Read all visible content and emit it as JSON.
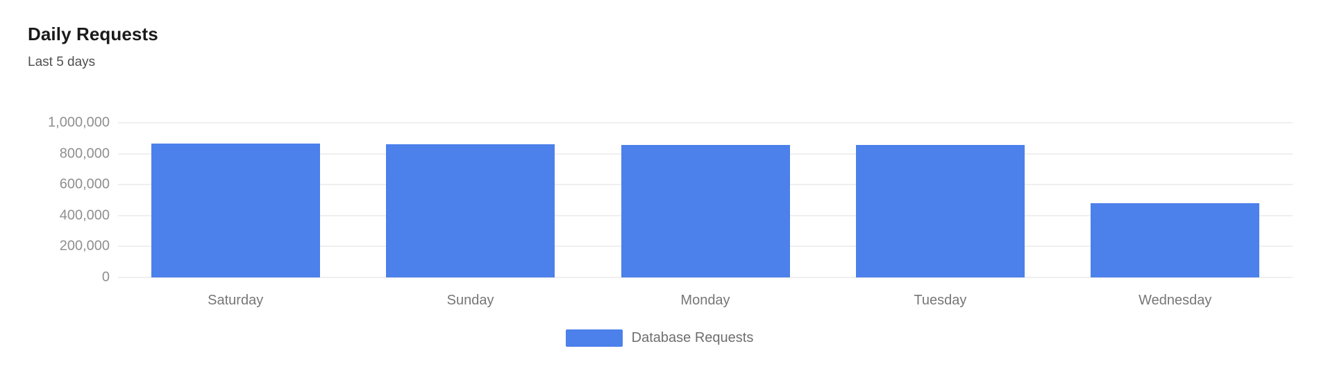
{
  "page": {
    "background": "#ffffff"
  },
  "header": {
    "title": "Daily Requests",
    "subtitle": "Last 5 days"
  },
  "chart_data": {
    "type": "bar",
    "title": "Daily Requests",
    "subtitle": "Last 5 days",
    "categories": [
      "Saturday",
      "Sunday",
      "Monday",
      "Tuesday",
      "Wednesday"
    ],
    "series": [
      {
        "name": "Database Requests",
        "color": "#4C80EA",
        "values": [
          865000,
          862000,
          858000,
          856000,
          480000
        ]
      }
    ],
    "ylim": [
      0,
      1000000
    ],
    "ytick_step": 200000,
    "ytick_labels": [
      "0",
      "200,000",
      "400,000",
      "600,000",
      "800,000",
      "1,000,000"
    ],
    "grid": "horizontal-only",
    "legend_position": "bottom-center",
    "colors": {
      "bar": "#4C80EA",
      "gridline": "#efefef",
      "y_axis_label": "#8f8f8f",
      "x_axis_label": "#767676",
      "title": "#1a1a1a",
      "subtitle": "#4f4f4f",
      "legend_text": "#6e6e6e"
    }
  }
}
